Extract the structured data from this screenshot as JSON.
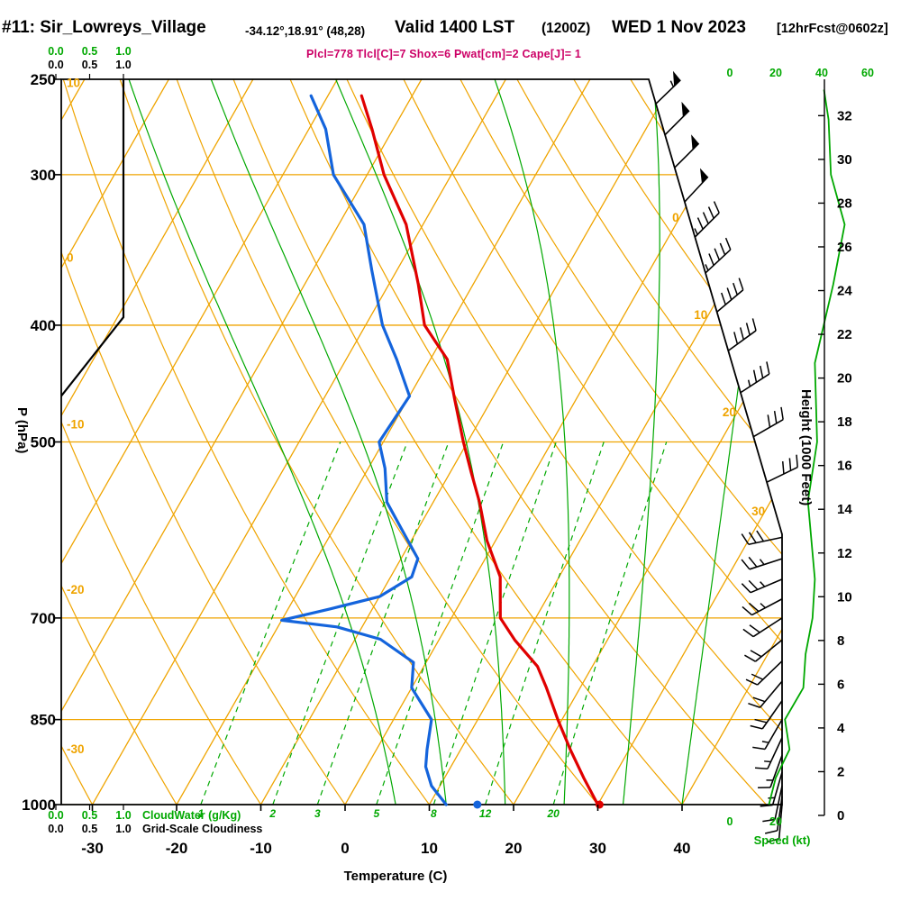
{
  "colors": {
    "grid_orange": "#EFA400",
    "green": "#00A800",
    "temp_red": "#E00000",
    "dew_blue": "#1464DC",
    "magenta": "#CC0066",
    "black": "#000000"
  },
  "header": {
    "station": "#11: Sir_Lowreys_Village",
    "coords": "-34.12°,18.91° (48,28)",
    "valid_label": "Valid 1400 LST",
    "valid_z": "(1200Z)",
    "valid_date": "WED 1 Nov 2023",
    "fcst": "[12hrFcst@0602z]",
    "params": "Plcl=778 Tlcl[C]=7 Shox=6 Pwat[cm]=2 Cape[J]= 1"
  },
  "axes": {
    "pressure": {
      "title": "P (hPa)",
      "ticks": [
        250,
        300,
        400,
        500,
        700,
        850,
        1000
      ]
    },
    "temperature": {
      "title": "Temperature (C)",
      "ticks": [
        -30,
        -20,
        -10,
        0,
        10,
        20,
        30,
        40
      ]
    },
    "height": {
      "title": "Height (1000 Feet)",
      "ticks": [
        0,
        2,
        4,
        6,
        8,
        10,
        12,
        14,
        16,
        18,
        20,
        22,
        24,
        26,
        28,
        30,
        32
      ]
    }
  },
  "scales": {
    "cloud": {
      "values": [
        "0.0",
        "0.5",
        "1.0"
      ],
      "cloudwater_label": "CloudWater (g/Kg)",
      "cloudiness_label": "Grid-Scale Cloudiness"
    },
    "speed": {
      "title": "Speed (kt)",
      "top_ticks": [
        "0",
        "20",
        "40",
        "60"
      ],
      "bottom_ticks": [
        "0",
        "20"
      ]
    }
  },
  "chart_data": {
    "type": "line",
    "subtype": "skew-t-log-p",
    "title": "#11: Sir_Lowreys_Village Valid 1400 LST (1200Z) WED 1 Nov 2023",
    "pressure_lines": [
      300,
      400,
      500,
      700,
      850,
      1000
    ],
    "isotherm_range": {
      "min": -120,
      "max": 40,
      "step": 10
    },
    "dry_adiabat_range": {
      "min": -40,
      "max": 150,
      "step": 10
    },
    "moist_adiabat_start_temps": [
      6,
      12,
      19,
      26,
      33,
      40
    ],
    "mixing_ratio_lines": [
      1,
      2,
      3,
      5,
      8,
      12,
      20
    ],
    "left_theta_labels": [
      10,
      0,
      -10,
      -20,
      -30
    ],
    "right_isotherm_labels": [
      0,
      10,
      20,
      30
    ],
    "temperature_profile": [
      [
        1000,
        30
      ],
      [
        950,
        26.5
      ],
      [
        900,
        23
      ],
      [
        850,
        19.5
      ],
      [
        800,
        16
      ],
      [
        768,
        13.5
      ],
      [
        730,
        9
      ],
      [
        700,
        5.8
      ],
      [
        647,
        3
      ],
      [
        604,
        -1
      ],
      [
        561,
        -4.5
      ],
      [
        530,
        -7.5
      ],
      [
        500,
        -10.5
      ],
      [
        460,
        -14.5
      ],
      [
        427,
        -18
      ],
      [
        400,
        -23
      ],
      [
        370,
        -26.5
      ],
      [
        330,
        -32
      ],
      [
        300,
        -38
      ],
      [
        275,
        -42.5
      ],
      [
        258,
        -46
      ]
    ],
    "dewpoint_profile": [
      [
        1000,
        12
      ],
      [
        965,
        9
      ],
      [
        930,
        7
      ],
      [
        900,
        6
      ],
      [
        850,
        4.5
      ],
      [
        800,
        0
      ],
      [
        762,
        -1.5
      ],
      [
        729,
        -7
      ],
      [
        712,
        -13
      ],
      [
        703,
        -20
      ],
      [
        688,
        -15
      ],
      [
        672,
        -10
      ],
      [
        647,
        -7.5
      ],
      [
        625,
        -8
      ],
      [
        590,
        -12
      ],
      [
        561,
        -15.5
      ],
      [
        526,
        -18
      ],
      [
        500,
        -20.5
      ],
      [
        458,
        -20
      ],
      [
        427,
        -24
      ],
      [
        400,
        -28
      ],
      [
        360,
        -33
      ],
      [
        330,
        -37
      ],
      [
        300,
        -44
      ],
      [
        275,
        -48
      ],
      [
        258,
        -52
      ]
    ],
    "surface_temp_dot": {
      "p": 1000,
      "t": 30.2
    },
    "surface_dew_dot": {
      "p": 1000,
      "t": 15.7
    },
    "cloudiness_profile": [
      [
        1000,
        0
      ],
      [
        464,
        0
      ],
      [
        394,
        1
      ],
      [
        250,
        1
      ]
    ],
    "wind_barbs": [
      [
        262,
        46,
        55
      ],
      [
        278,
        45,
        52
      ],
      [
        296,
        45,
        50
      ],
      [
        316,
        43,
        48
      ],
      [
        338,
        45,
        46
      ],
      [
        362,
        47,
        44
      ],
      [
        390,
        50,
        42
      ],
      [
        420,
        54,
        38
      ],
      [
        455,
        57,
        35
      ],
      [
        495,
        60,
        32
      ],
      [
        540,
        64,
        30
      ],
      [
        600,
        258,
        28
      ],
      [
        625,
        252,
        26
      ],
      [
        650,
        247,
        25
      ],
      [
        675,
        242,
        24
      ],
      [
        700,
        237,
        22
      ],
      [
        730,
        231,
        21
      ],
      [
        760,
        226,
        20
      ],
      [
        790,
        220,
        19
      ],
      [
        820,
        215,
        18
      ],
      [
        850,
        210,
        17
      ],
      [
        880,
        205,
        16
      ],
      [
        910,
        200,
        15
      ],
      [
        940,
        196,
        14
      ],
      [
        965,
        192,
        12
      ],
      [
        985,
        188,
        11
      ],
      [
        1000,
        185,
        10
      ]
    ],
    "speed_profile": [
      [
        255,
        41
      ],
      [
        270,
        43
      ],
      [
        300,
        44
      ],
      [
        330,
        50
      ],
      [
        370,
        45
      ],
      [
        430,
        37
      ],
      [
        500,
        38
      ],
      [
        560,
        34
      ],
      [
        650,
        37
      ],
      [
        700,
        36
      ],
      [
        750,
        33
      ],
      [
        800,
        32
      ],
      [
        850,
        24
      ],
      [
        900,
        26
      ],
      [
        950,
        20
      ],
      [
        1000,
        17
      ]
    ]
  }
}
